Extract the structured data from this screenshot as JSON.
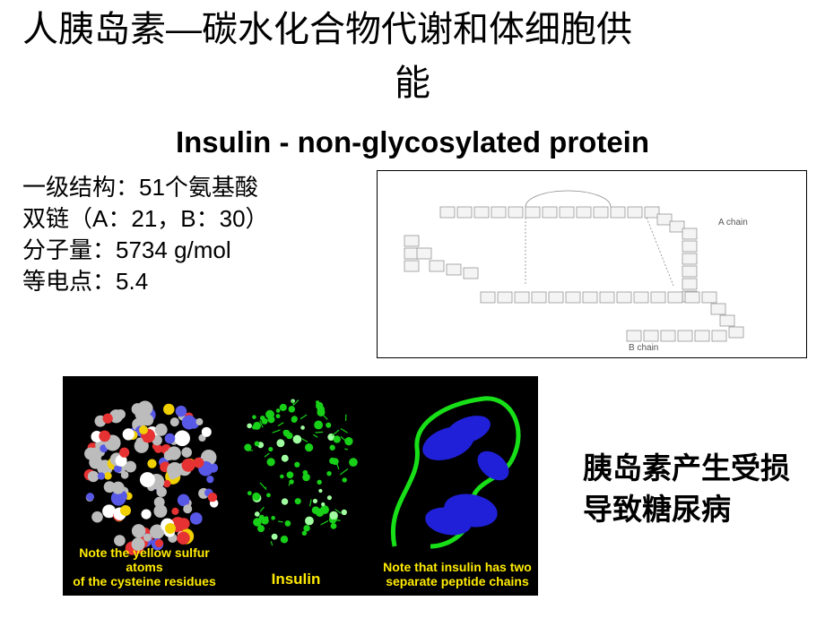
{
  "title_line1": "人胰岛素—碳水化合物代谢和体细胞供",
  "title_line2": "能",
  "subtitle": "Insulin - non-glycosylated protein",
  "properties": {
    "l1": "一级结构：51个氨基酸",
    "l2_pre": "双链（",
    "l2_a": "A：21，B：30",
    "l2_post": "）",
    "l3_pre": "分子量：",
    "l3_val": "5734 g/mol",
    "l4_pre": "等电点：",
    "l4_val": "5.4"
  },
  "chain_diagram": {
    "chainA_label": "A chain",
    "chainB_label": "B chain",
    "chainA_count": 21,
    "chainB_count": 30,
    "box_fill": "#f4f4f4",
    "box_stroke": "#888",
    "label_color": "#555"
  },
  "molecules": {
    "bg": "#000000",
    "caption_color": "#ffeb00",
    "left": {
      "caption_l1": "Note the yellow sulfur atoms",
      "caption_l2": "of the cysteine residues",
      "colors": {
        "c": "#bcbcbc",
        "o": "#e63232",
        "n": "#5858e6",
        "s": "#f0d000",
        "h": "#ffffff"
      }
    },
    "center": {
      "caption": "Insulin",
      "colors": {
        "main": "#18d018",
        "h": "#a0ffa0"
      }
    },
    "right": {
      "caption_l1": "Note that insulin has two",
      "caption_l2": "separate peptide chains",
      "colors": {
        "ribbon": "#18e018",
        "helix": "#2020d8"
      }
    }
  },
  "footer_note": "胰岛素产生受损导致糖尿病"
}
